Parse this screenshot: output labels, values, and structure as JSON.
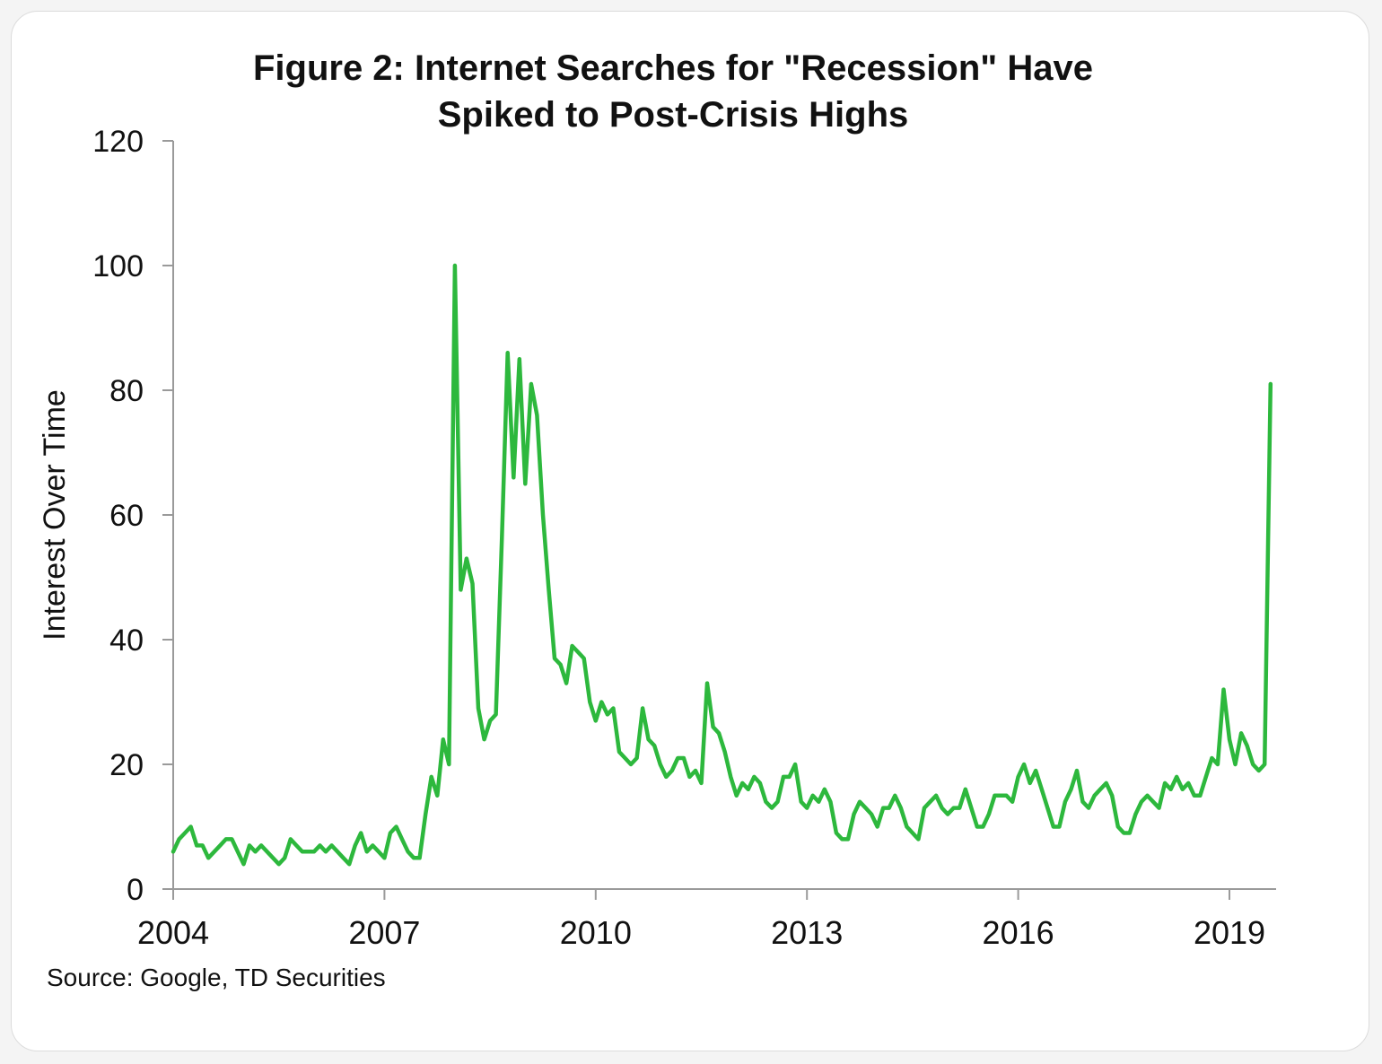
{
  "chart_data": {
    "type": "line",
    "title": "Figure 2: Internet Searches for \"Recession\" Have",
    "title_line2": "Spiked to Post-Crisis Highs",
    "xlabel": "",
    "ylabel": "Interest Over Time",
    "xlim": [
      2004,
      2019.75
    ],
    "ylim": [
      0,
      120
    ],
    "x_ticks": [
      "2004",
      "2007",
      "2010",
      "2013",
      "2016",
      "2019"
    ],
    "y_ticks": [
      "0",
      "20",
      "40",
      "60",
      "80",
      "100",
      "120"
    ],
    "grid": false,
    "line_color": "#2db83d",
    "source": "Source: Google, TD Securities",
    "series": [
      {
        "frequency": "monthly, starting Jan 2004",
        "values": [
          6,
          8,
          9,
          10,
          7,
          7,
          5,
          6,
          7,
          8,
          8,
          6,
          4,
          7,
          6,
          7,
          6,
          5,
          4,
          5,
          8,
          7,
          6,
          6,
          6,
          7,
          6,
          7,
          6,
          5,
          4,
          7,
          9,
          6,
          7,
          6,
          5,
          9,
          10,
          8,
          6,
          5,
          5,
          12,
          18,
          15,
          24,
          20,
          100,
          48,
          53,
          49,
          29,
          24,
          27,
          28,
          56,
          86,
          66,
          85,
          65,
          81,
          76,
          60,
          48,
          37,
          36,
          33,
          39,
          38,
          37,
          30,
          27,
          30,
          28,
          29,
          22,
          21,
          20,
          21,
          29,
          24,
          23,
          20,
          18,
          19,
          21,
          21,
          18,
          19,
          17,
          33,
          26,
          25,
          22,
          18,
          15,
          17,
          16,
          18,
          17,
          14,
          13,
          14,
          18,
          18,
          20,
          14,
          13,
          15,
          14,
          16,
          14,
          9,
          8,
          8,
          12,
          14,
          13,
          12,
          10,
          13,
          13,
          15,
          13,
          10,
          9,
          8,
          13,
          14,
          15,
          13,
          12,
          13,
          13,
          16,
          13,
          10,
          10,
          12,
          15,
          15,
          15,
          14,
          18,
          20,
          17,
          19,
          16,
          13,
          10,
          10,
          14,
          16,
          19,
          14,
          13,
          15,
          16,
          17,
          15,
          10,
          9,
          9,
          12,
          14,
          15,
          14,
          13,
          17,
          16,
          18,
          16,
          17,
          15,
          15,
          18,
          21,
          20,
          32,
          24,
          20,
          25,
          23,
          20,
          19,
          20,
          81
        ]
      }
    ]
  }
}
